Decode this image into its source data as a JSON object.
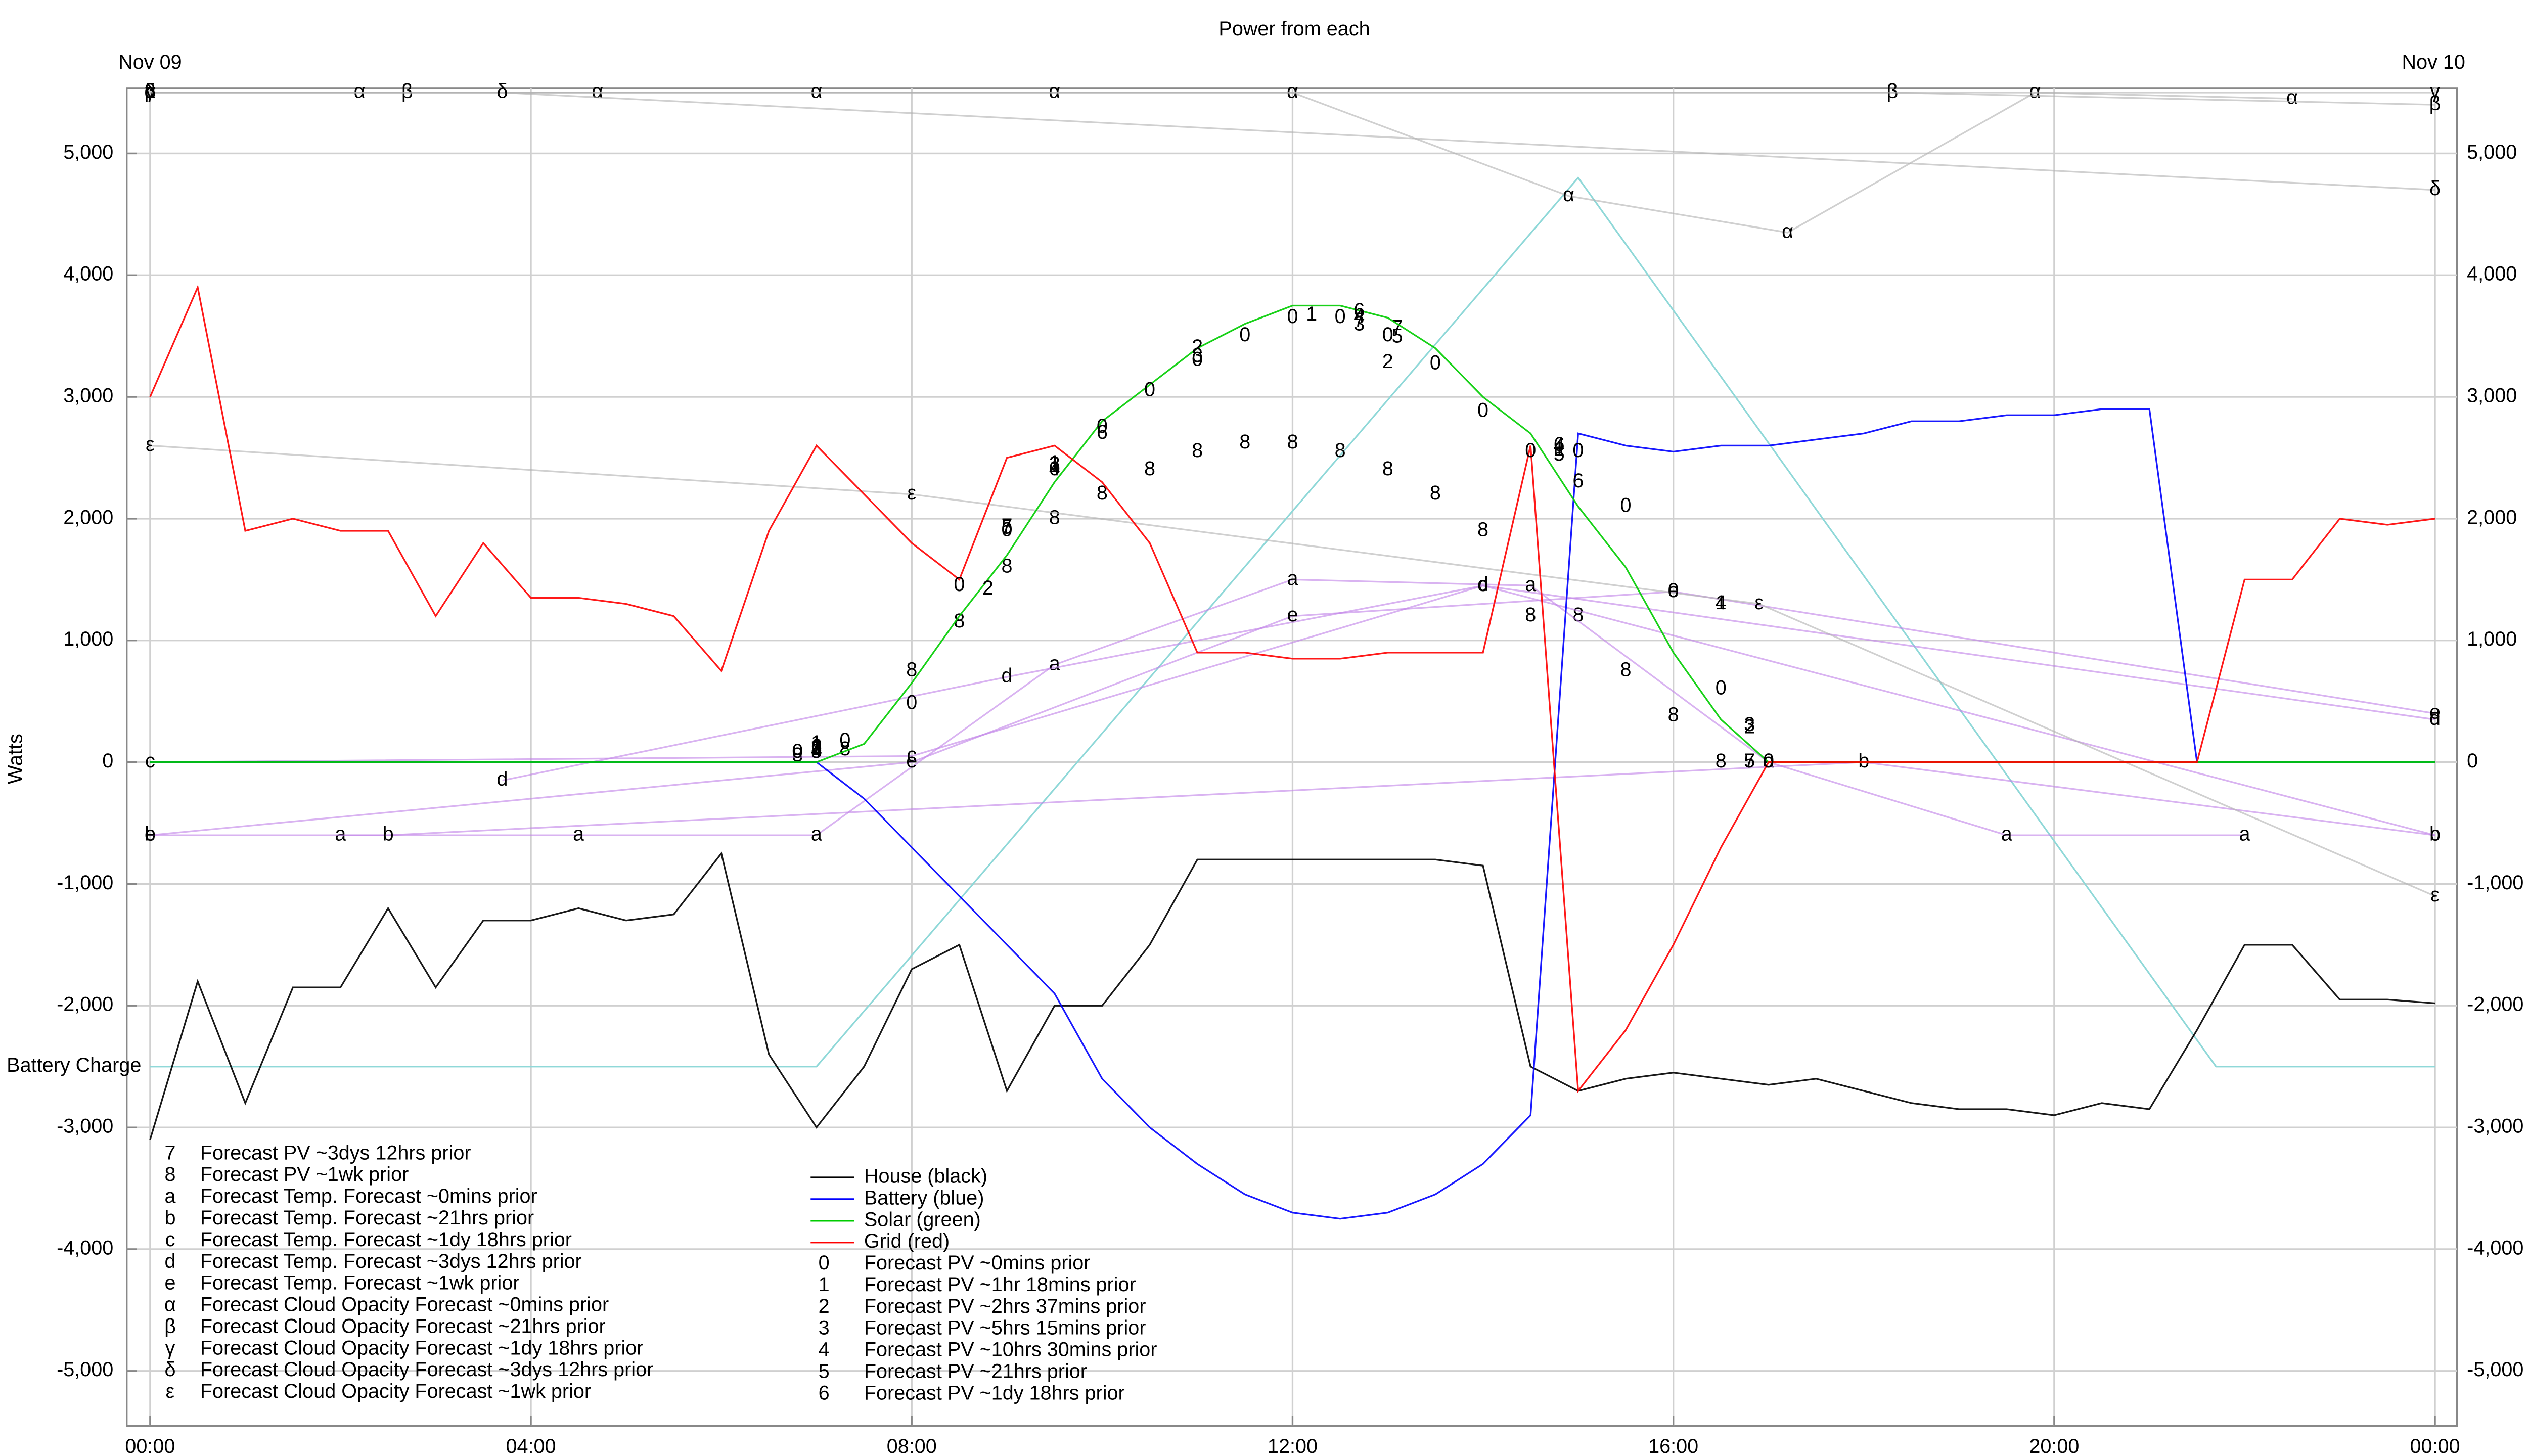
{
  "chart_data": {
    "type": "line",
    "title": "Power from each",
    "ylabel": "Watts",
    "date_start": "Nov 09",
    "date_end": "Nov 10",
    "xlim": [
      -0.245,
      24.23
    ],
    "ylim": [
      -5452,
      5534
    ],
    "xticks": [
      {
        "value": 0,
        "label": "00:00"
      },
      {
        "value": 4,
        "label": "04:00"
      },
      {
        "value": 8,
        "label": "08:00"
      },
      {
        "value": 12,
        "label": "12:00"
      },
      {
        "value": 16,
        "label": "16:00"
      },
      {
        "value": 20,
        "label": "20:00"
      },
      {
        "value": 24,
        "label": "00:00"
      }
    ],
    "yticks": [
      {
        "value": -5000,
        "label": "-5,000"
      },
      {
        "value": -4000,
        "label": "-4,000"
      },
      {
        "value": -3000,
        "label": "-3,000"
      },
      {
        "value": -2000,
        "label": "-2,000"
      },
      {
        "value": -1000,
        "label": "-1,000"
      },
      0,
      {
        "value": 1000,
        "label": "1,000"
      },
      {
        "value": 2000,
        "label": "2,000"
      },
      {
        "value": 3000,
        "label": "3,000"
      },
      {
        "value": 4000,
        "label": "4,000"
      },
      {
        "value": 5000,
        "label": "5,000"
      }
    ],
    "grid": true,
    "x": [
      0,
      0.5,
      1,
      1.5,
      2,
      2.5,
      3,
      3.5,
      4,
      4.5,
      5,
      5.5,
      6,
      6.5,
      7,
      7.5,
      8,
      8.5,
      9,
      9.5,
      10,
      10.5,
      11,
      11.5,
      12,
      12.5,
      13,
      13.5,
      14,
      14.5,
      15,
      15.5,
      16,
      16.5,
      17,
      17.5,
      18,
      18.5,
      19,
      19.5,
      20,
      20.5,
      21,
      21.5,
      22,
      22.5,
      23,
      23.5,
      24
    ],
    "battery_charge": {
      "name": "Battery Charge",
      "color": "#8fd8d8",
      "x": [
        0,
        7,
        15,
        21.7,
        24
      ],
      "values": [
        -2500,
        -2500,
        4800,
        -2500,
        -2500
      ]
    },
    "series": [
      {
        "name": "Forecast PV ~3dys 12hrs prior",
        "symbol": "7",
        "color": "#000000",
        "x": [
          7,
          9,
          12.7,
          13.1,
          16.8
        ],
        "values": [
          100,
          1930,
          3620,
          3560,
          0
        ]
      },
      {
        "name": "Forecast PV ~1wk prior",
        "symbol": "8",
        "color": "#000000",
        "x": [
          6.8,
          7.3,
          8,
          8.5,
          9,
          9.5,
          10,
          10.5,
          11,
          11.5,
          12,
          12.5,
          13,
          13.5,
          14,
          14.5,
          15,
          15.5,
          16,
          16.5
        ],
        "values": [
          50,
          100,
          750,
          1150,
          1600,
          2000,
          2200,
          2400,
          2550,
          2620,
          2620,
          2550,
          2400,
          2200,
          1900,
          1200,
          1200,
          750,
          380,
          0
        ]
      },
      {
        "name": "Forecast Temp. Forecast ~0mins prior",
        "symbol": "a",
        "color": "#c080e8",
        "lines": true,
        "x": [
          2,
          4.5,
          7,
          9.5,
          12,
          14.5,
          17,
          19.5,
          22
        ],
        "values": [
          -600,
          -600,
          -600,
          800,
          1500,
          1450,
          0,
          -600,
          -600
        ]
      },
      {
        "name": "Forecast Temp. Forecast ~21hrs prior",
        "symbol": "b",
        "color": "#c080e8",
        "lines": true,
        "x": [
          0,
          2.5,
          18,
          24
        ],
        "values": [
          -600,
          -600,
          0,
          -600
        ]
      },
      {
        "name": "Forecast Temp. Forecast ~1dy 18hrs prior",
        "symbol": "c",
        "color": "#c080e8",
        "lines": true,
        "x": [
          0,
          8,
          14,
          24
        ],
        "values": [
          0,
          50,
          1450,
          -600
        ]
      },
      {
        "name": "Forecast Temp. Forecast ~3dys 12hrs prior",
        "symbol": "d",
        "color": "#c080e8",
        "lines": true,
        "x": [
          3.7,
          9,
          14,
          24
        ],
        "values": [
          -150,
          700,
          1450,
          350
        ]
      },
      {
        "name": "Forecast Temp. Forecast ~1wk prior",
        "symbol": "e",
        "color": "#c080e8",
        "lines": true,
        "x": [
          0,
          8,
          12,
          16,
          24
        ],
        "values": [
          -600,
          0,
          1200,
          1400,
          400
        ]
      },
      {
        "name": "Forecast Cloud Opacity Forecast ~0mins prior",
        "symbol": "α",
        "color": "#b0b0b0",
        "lines": true,
        "x": [
          0,
          2.2,
          4.7,
          7,
          9.5,
          12,
          14.9,
          17.2,
          19.8,
          22.5
        ],
        "values": [
          5500,
          5500,
          5500,
          5500,
          5500,
          5500,
          4650,
          4350,
          5500,
          5450
        ]
      },
      {
        "name": "Forecast Cloud Opacity Forecast ~21hrs prior",
        "symbol": "β",
        "color": "#b0b0b0",
        "lines": true,
        "x": [
          0,
          2.7,
          18.3,
          24
        ],
        "values": [
          5500,
          5500,
          5500,
          5400
        ]
      },
      {
        "name": "Forecast Cloud Opacity Forecast ~1dy 18hrs prior",
        "symbol": "γ",
        "color": "#b0b0b0",
        "lines": true,
        "x": [
          0,
          24
        ],
        "values": [
          5500,
          5500
        ]
      },
      {
        "name": "Forecast Cloud Opacity Forecast ~3dys 12hrs prior",
        "symbol": "δ",
        "color": "#b0b0b0",
        "lines": true,
        "x": [
          0,
          3.7,
          24
        ],
        "values": [
          5500,
          5500,
          4700
        ]
      },
      {
        "name": "Forecast Cloud Opacity Forecast ~1wk prior",
        "symbol": "ε",
        "color": "#b0b0b0",
        "lines": true,
        "x": [
          0,
          8,
          16.9,
          24
        ],
        "values": [
          2600,
          2200,
          1300,
          -1100
        ]
      },
      {
        "name": "House (black)",
        "color": "#000000",
        "values": [
          -3100,
          -1800,
          -2800,
          -1850,
          -1850,
          -1200,
          -1850,
          -1300,
          -1300,
          -1200,
          -1300,
          -1250,
          -750,
          -2400,
          -3000,
          -2500,
          -1700,
          -1500,
          -2700,
          -2000,
          -2000,
          -1500,
          -800,
          -800,
          -800,
          -800,
          -800,
          -800,
          -850,
          -2500,
          -2700,
          -2600,
          -2550,
          -2600,
          -2650,
          -2600,
          -2700,
          -2800,
          -2850,
          -2850,
          -2900,
          -2800,
          -2850,
          -2200,
          -1500,
          -1500,
          -1950,
          -1950,
          -1980
        ]
      },
      {
        "name": "Battery (blue)",
        "color": "#0000ff",
        "values": [
          0,
          0,
          0,
          0,
          0,
          0,
          0,
          0,
          0,
          0,
          0,
          0,
          0,
          0,
          0,
          -300,
          -700,
          -1100,
          -1500,
          -1900,
          -2600,
          -3000,
          -3300,
          -3550,
          -3700,
          -3750,
          -3700,
          -3550,
          -3300,
          -2900,
          2700,
          2600,
          2550,
          2600,
          2600,
          2650,
          2700,
          2800,
          2800,
          2850,
          2850,
          2900,
          2900,
          0,
          0,
          0,
          0,
          0,
          0
        ]
      },
      {
        "name": "Solar (green)",
        "color": "#00cc00",
        "values": [
          0,
          0,
          0,
          0,
          0,
          0,
          0,
          0,
          0,
          0,
          0,
          0,
          0,
          0,
          0,
          150,
          650,
          1200,
          1700,
          2300,
          2800,
          3100,
          3400,
          3600,
          3750,
          3750,
          3650,
          3400,
          3000,
          2700,
          2100,
          1600,
          900,
          350,
          0,
          0,
          0,
          0,
          0,
          0,
          0,
          0,
          0,
          0,
          0,
          0,
          0,
          0,
          0
        ]
      },
      {
        "name": "Grid (red)",
        "color": "#ff0000",
        "values": [
          3000,
          3900,
          1900,
          2000,
          1900,
          1900,
          1200,
          1800,
          1350,
          1350,
          1300,
          1200,
          750,
          1900,
          2600,
          2200,
          1800,
          1500,
          2500,
          2600,
          2300,
          1800,
          900,
          900,
          850,
          850,
          900,
          900,
          900,
          2600,
          -2700,
          -2200,
          -1500,
          -700,
          0,
          0,
          0,
          0,
          0,
          0,
          0,
          0,
          0,
          0,
          1500,
          1500,
          2000,
          1950,
          2000
        ]
      },
      {
        "name": "Forecast PV ~0mins prior",
        "symbol": "0",
        "color": "#000000",
        "x": [
          6.8,
          7.3,
          8,
          8.5,
          9,
          9.5,
          10,
          10.5,
          11,
          11.5,
          12,
          12.5,
          13,
          13.5,
          14,
          14.5,
          15,
          15.5,
          16,
          16.5,
          17
        ],
        "values": [
          80,
          170,
          480,
          1450,
          1900,
          2400,
          2750,
          3050,
          3300,
          3500,
          3650,
          3650,
          3500,
          3270,
          2880,
          2550,
          2550,
          2100,
          1400,
          600,
          0
        ]
      },
      {
        "name": "Forecast PV ~1hr 18mins prior",
        "symbol": "1",
        "color": "#000000",
        "x": [
          7,
          9.5,
          12.2,
          14.8,
          16.5
        ],
        "values": [
          150,
          2450,
          3670,
          2560,
          1300
        ]
      },
      {
        "name": "Forecast PV ~2hrs 37mins prior",
        "symbol": "2",
        "color": "#000000",
        "x": [
          7,
          8.8,
          11,
          13,
          16.8
        ],
        "values": [
          100,
          1420,
          3400,
          3280,
          280
        ]
      },
      {
        "name": "Forecast PV ~5hrs 15mins prior",
        "symbol": "3",
        "color": "#000000",
        "x": [
          7,
          9.5,
          11,
          12.7,
          16.8
        ],
        "values": [
          110,
          2440,
          3330,
          3590,
          300
        ]
      },
      {
        "name": "Forecast PV ~10hrs 30mins prior",
        "symbol": "4",
        "color": "#000000",
        "x": [
          7,
          9.5,
          12.7,
          14.8,
          16.5
        ],
        "values": [
          90,
          2400,
          3650,
          2590,
          1300
        ]
      },
      {
        "name": "Forecast PV ~21hrs prior",
        "symbol": "5",
        "color": "#000000",
        "x": [
          7,
          9,
          13.1,
          14.8,
          16.8
        ],
        "values": [
          80,
          1920,
          3490,
          2520,
          0
        ]
      },
      {
        "name": "Forecast PV ~1dy 18hrs prior",
        "symbol": "6",
        "color": "#000000",
        "x": [
          7,
          10,
          12.7,
          14.8,
          15
        ],
        "values": [
          120,
          2700,
          3700,
          2600,
          2300
        ]
      }
    ]
  }
}
